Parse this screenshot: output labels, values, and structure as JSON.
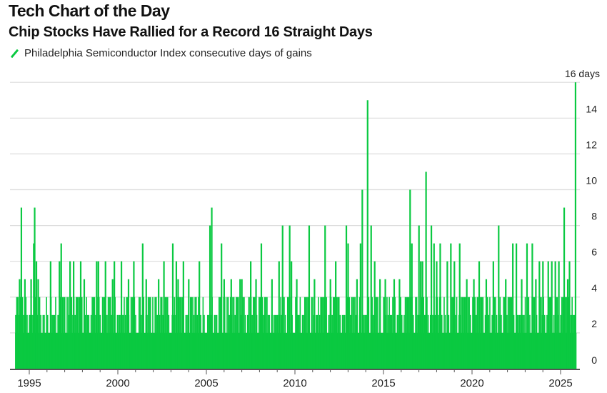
{
  "header": {
    "title": "Tech Chart of the Day",
    "subtitle": "Chip Stocks Have Rallied for a Record 16 Straight Days"
  },
  "chart_data": {
    "type": "bar",
    "title": "Chip Stocks Have Rallied for a Record 16 Straight Days",
    "series_name": "Philadelphia Semiconductor Index consecutive days of gains",
    "color": "#0ac941",
    "xlabel": "",
    "ylabel": "",
    "xlim": [
      1994.2,
      2025.9
    ],
    "ylim": [
      0,
      16
    ],
    "grid": true,
    "legend_position": "top-left",
    "x_ticks": [
      "1995",
      "2000",
      "2005",
      "2010",
      "2015",
      "2020",
      "2025"
    ],
    "y_ticks": [
      "0",
      "2",
      "4",
      "6",
      "8",
      "10",
      "12",
      "14"
    ],
    "annotation": "16 days",
    "peaks": [
      [
        1994.3,
        4
      ],
      [
        1994.45,
        5
      ],
      [
        1994.55,
        9
      ],
      [
        1994.75,
        5
      ],
      [
        1995.1,
        5
      ],
      [
        1995.25,
        7
      ],
      [
        1995.3,
        9
      ],
      [
        1995.4,
        6
      ],
      [
        1995.5,
        5
      ],
      [
        1996.2,
        6
      ],
      [
        1996.7,
        6
      ],
      [
        1996.8,
        7
      ],
      [
        1997.3,
        6
      ],
      [
        1997.5,
        6
      ],
      [
        1997.9,
        6
      ],
      [
        1998.1,
        5
      ],
      [
        1998.8,
        6
      ],
      [
        1998.9,
        6
      ],
      [
        1999.3,
        6
      ],
      [
        1999.7,
        5
      ],
      [
        1999.8,
        6
      ],
      [
        2000.2,
        6
      ],
      [
        2000.6,
        5
      ],
      [
        2000.9,
        6
      ],
      [
        2001.4,
        7
      ],
      [
        2001.6,
        5
      ],
      [
        2002.3,
        5
      ],
      [
        2002.6,
        6
      ],
      [
        2003.1,
        7
      ],
      [
        2003.3,
        6
      ],
      [
        2003.4,
        5
      ],
      [
        2003.7,
        6
      ],
      [
        2004.0,
        5
      ],
      [
        2004.6,
        6
      ],
      [
        2005.2,
        8
      ],
      [
        2005.3,
        9
      ],
      [
        2005.85,
        7
      ],
      [
        2006.0,
        5
      ],
      [
        2006.4,
        5
      ],
      [
        2006.9,
        5
      ],
      [
        2007.0,
        5
      ],
      [
        2007.5,
        6
      ],
      [
        2007.8,
        5
      ],
      [
        2008.1,
        7
      ],
      [
        2008.7,
        5
      ],
      [
        2009.1,
        6
      ],
      [
        2009.3,
        8
      ],
      [
        2009.7,
        8
      ],
      [
        2009.8,
        6
      ],
      [
        2010.1,
        5
      ],
      [
        2010.8,
        8
      ],
      [
        2011.1,
        5
      ],
      [
        2011.7,
        8
      ],
      [
        2012.0,
        5
      ],
      [
        2012.3,
        6
      ],
      [
        2012.9,
        8
      ],
      [
        2013.0,
        7
      ],
      [
        2013.5,
        5
      ],
      [
        2013.7,
        7
      ],
      [
        2013.8,
        10
      ],
      [
        2014.1,
        15
      ],
      [
        2014.3,
        8
      ],
      [
        2014.5,
        6
      ],
      [
        2014.8,
        5
      ],
      [
        2015.1,
        5
      ],
      [
        2015.6,
        5
      ],
      [
        2015.9,
        5
      ],
      [
        2016.5,
        10
      ],
      [
        2016.6,
        7
      ],
      [
        2017.0,
        8
      ],
      [
        2017.1,
        6
      ],
      [
        2017.2,
        6
      ],
      [
        2017.4,
        11
      ],
      [
        2017.7,
        8
      ],
      [
        2017.85,
        7
      ],
      [
        2018.0,
        6
      ],
      [
        2018.2,
        7
      ],
      [
        2018.6,
        6
      ],
      [
        2018.8,
        7
      ],
      [
        2019.0,
        6
      ],
      [
        2019.3,
        7
      ],
      [
        2019.7,
        5
      ],
      [
        2020.1,
        5
      ],
      [
        2020.4,
        6
      ],
      [
        2020.8,
        5
      ],
      [
        2021.2,
        6
      ],
      [
        2021.5,
        8
      ],
      [
        2021.9,
        5
      ],
      [
        2022.3,
        7
      ],
      [
        2022.5,
        7
      ],
      [
        2022.8,
        5
      ],
      [
        2023.1,
        7
      ],
      [
        2023.4,
        7
      ],
      [
        2023.6,
        5
      ],
      [
        2023.8,
        6
      ],
      [
        2024.0,
        6
      ],
      [
        2024.3,
        6
      ],
      [
        2024.5,
        6
      ],
      [
        2024.7,
        6
      ],
      [
        2024.9,
        6
      ],
      [
        2025.2,
        9
      ],
      [
        2025.4,
        5
      ],
      [
        2025.5,
        6
      ],
      [
        2025.6,
        3
      ],
      [
        2025.84,
        16
      ]
    ],
    "base_values": [
      3,
      4,
      2,
      4,
      3,
      4,
      4,
      3,
      2,
      4,
      3,
      4,
      1,
      3,
      4,
      4,
      3,
      2,
      4,
      3,
      4,
      3,
      4,
      2,
      3,
      4,
      3,
      4,
      4,
      3,
      2,
      3,
      4,
      4,
      3,
      4,
      2,
      4,
      3,
      3,
      4,
      1,
      4,
      3,
      4,
      3,
      2,
      4,
      4,
      3,
      4,
      3,
      3,
      4,
      2,
      4,
      3,
      4,
      4,
      3,
      4
    ]
  }
}
